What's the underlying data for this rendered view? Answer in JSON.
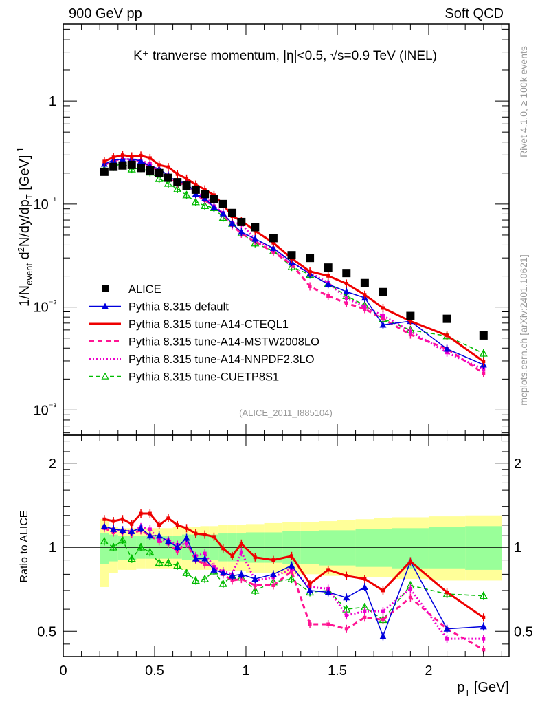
{
  "header": {
    "left_label": "900 GeV pp",
    "right_label": "Soft QCD"
  },
  "side_labels": {
    "rivet": "Rivet 4.1.0, ≥ 100k events",
    "mcplots": "mcplots.cern.ch [arXiv:2401.10621]"
  },
  "chart_data": [
    {
      "type": "scatter",
      "panel": "main",
      "title": "K⁺ tranverse momentum, |η|<0.5, √s=0.9 TeV (INEL)",
      "xlabel": "p_T [GeV]",
      "ylabel": "1/N_event d²N/dy/dp_T [GeV]⁻¹",
      "yscale": "log",
      "xlim": [
        0,
        2.44
      ],
      "ylim": [
        0.00057,
        5.6
      ],
      "ytick_labels": [
        "10⁻³",
        "10⁻²",
        "10⁻¹",
        "1"
      ],
      "ytick_values": [
        0.001,
        0.01,
        0.1,
        1
      ],
      "analysis_label": "(ALICE_2011_I885104)",
      "legend_position": "bottom-left",
      "x": [
        0.225,
        0.275,
        0.325,
        0.375,
        0.425,
        0.475,
        0.525,
        0.575,
        0.625,
        0.675,
        0.725,
        0.775,
        0.825,
        0.875,
        0.925,
        0.975,
        1.05,
        1.15,
        1.25,
        1.35,
        1.45,
        1.55,
        1.65,
        1.75,
        1.9,
        2.1,
        2.3
      ],
      "x_bin_edges": [
        0.2,
        0.25,
        0.3,
        0.35,
        0.4,
        0.45,
        0.5,
        0.55,
        0.6,
        0.65,
        0.7,
        0.75,
        0.8,
        0.85,
        0.9,
        0.95,
        1.0,
        1.1,
        1.2,
        1.3,
        1.4,
        1.5,
        1.6,
        1.7,
        1.8,
        2.0,
        2.2,
        2.4
      ],
      "data": {
        "name": "ALICE",
        "values": [
          0.206,
          0.23,
          0.237,
          0.24,
          0.224,
          0.212,
          0.2,
          0.18,
          0.163,
          0.151,
          0.138,
          0.125,
          0.112,
          0.1,
          0.082,
          0.067,
          0.0596,
          0.0467,
          0.0319,
          0.03,
          0.0242,
          0.0214,
          0.0171,
          0.014,
          0.0082,
          0.0077,
          0.0053
        ]
      },
      "series_note": "Model values in main panel = ALICE value x ratio (see ratio panel).",
      "series": [
        {
          "name": "Pythia 8.315 default",
          "color": "#0000dd",
          "style": "solid-thin",
          "marker": "filled-triangle"
        },
        {
          "name": "Pythia 8.315 tune-A14-CTEQL1",
          "color": "#ee0000",
          "style": "solid-thick",
          "marker": "none"
        },
        {
          "name": "Pythia 8.315 tune-A14-MSTW2008LO",
          "color": "#ff1493",
          "style": "dashed",
          "marker": "none"
        },
        {
          "name": "Pythia 8.315 tune-A14-NNPDF2.3LO",
          "color": "#ee00cc",
          "style": "dotted",
          "marker": "none"
        },
        {
          "name": "Pythia 8.315 tune-CUETP8S1",
          "color": "#00bb00",
          "style": "dashed-thin",
          "marker": "open-triangle"
        }
      ]
    },
    {
      "type": "line",
      "panel": "ratio",
      "ylabel": "Ratio to ALICE",
      "xlabel": "p_T [GeV]",
      "yscale": "log",
      "xlim": [
        0,
        2.44
      ],
      "ylim": [
        0.406,
        2.52
      ],
      "xtick_labels": [
        "0",
        "0.5",
        "1",
        "1.5",
        "2"
      ],
      "xtick_values": [
        0,
        0.5,
        1,
        1.5,
        2
      ],
      "ytick_labels": [
        "0.5",
        "1",
        "2"
      ],
      "ytick_values": [
        0.5,
        1,
        2
      ],
      "reference_line": 1,
      "band_inner": {
        "color": "#99ff99",
        "low": [
          0.87,
          0.89,
          0.9,
          0.9,
          0.91,
          0.91,
          0.91,
          0.91,
          0.91,
          0.9,
          0.9,
          0.9,
          0.9,
          0.89,
          0.89,
          0.89,
          0.88,
          0.88,
          0.87,
          0.87,
          0.86,
          0.86,
          0.85,
          0.85,
          0.84,
          0.84,
          0.83
        ],
        "high": [
          1.12,
          1.11,
          1.1,
          1.1,
          1.1,
          1.1,
          1.1,
          1.1,
          1.1,
          1.11,
          1.11,
          1.11,
          1.11,
          1.12,
          1.12,
          1.12,
          1.13,
          1.13,
          1.14,
          1.14,
          1.15,
          1.15,
          1.16,
          1.16,
          1.17,
          1.18,
          1.19
        ]
      },
      "band_outer": {
        "color": "#ffff99",
        "low": [
          0.72,
          0.81,
          0.83,
          0.83,
          0.84,
          0.84,
          0.84,
          0.84,
          0.84,
          0.83,
          0.83,
          0.83,
          0.83,
          0.82,
          0.82,
          0.82,
          0.81,
          0.81,
          0.8,
          0.8,
          0.79,
          0.79,
          0.78,
          0.78,
          0.77,
          0.76,
          0.76
        ],
        "high": [
          1.26,
          1.18,
          1.17,
          1.17,
          1.17,
          1.17,
          1.17,
          1.17,
          1.18,
          1.18,
          1.18,
          1.19,
          1.19,
          1.2,
          1.2,
          1.2,
          1.21,
          1.22,
          1.23,
          1.23,
          1.24,
          1.25,
          1.26,
          1.27,
          1.28,
          1.29,
          1.3
        ]
      },
      "series": [
        {
          "name": "Pythia 8.315 default",
          "values": [
            1.19,
            1.16,
            1.15,
            1.14,
            1.17,
            1.1,
            1.1,
            1.05,
            1.0,
            1.08,
            0.91,
            0.91,
            0.83,
            0.81,
            0.79,
            0.8,
            0.77,
            0.8,
            0.86,
            0.7,
            0.69,
            0.66,
            0.72,
            0.48,
            0.89,
            0.51,
            0.52
          ]
        },
        {
          "name": "Pythia 8.315 tune-A14-CTEQL1",
          "values": [
            1.26,
            1.24,
            1.26,
            1.21,
            1.32,
            1.32,
            1.2,
            1.27,
            1.2,
            1.17,
            1.12,
            1.11,
            1.09,
            0.99,
            0.93,
            1.03,
            0.92,
            0.9,
            0.93,
            0.74,
            0.83,
            0.79,
            0.77,
            0.7,
            0.89,
            0.69,
            0.56
          ]
        },
        {
          "name": "Pythia 8.315 tune-A14-MSTW2008LO",
          "values": [
            1.17,
            1.13,
            1.13,
            1.12,
            1.15,
            1.1,
            1.05,
            1.03,
            0.97,
            1.04,
            0.9,
            0.87,
            0.85,
            0.8,
            0.76,
            0.77,
            0.73,
            0.73,
            0.82,
            0.53,
            0.53,
            0.51,
            0.56,
            0.55,
            0.66,
            0.51,
            0.43
          ]
        },
        {
          "name": "Pythia 8.315 tune-A14-NNPDF2.3LO",
          "values": [
            1.18,
            1.16,
            1.15,
            1.14,
            1.18,
            1.16,
            1.06,
            1.06,
            1.02,
            1.03,
            0.93,
            0.95,
            0.85,
            0.82,
            0.8,
            0.96,
            0.76,
            0.78,
            0.84,
            0.72,
            0.71,
            0.57,
            0.59,
            0.59,
            0.71,
            0.47,
            0.47
          ]
        },
        {
          "name": "Pythia 8.315 tune-CUETP8S1",
          "values": [
            1.05,
            1.0,
            1.06,
            0.91,
            1.0,
            0.96,
            0.88,
            0.88,
            0.86,
            0.81,
            0.76,
            0.77,
            0.82,
            0.74,
            0.79,
            0.78,
            0.7,
            0.75,
            0.77,
            0.69,
            0.7,
            0.6,
            0.61,
            0.55,
            0.73,
            0.68,
            0.67
          ]
        }
      ]
    }
  ]
}
